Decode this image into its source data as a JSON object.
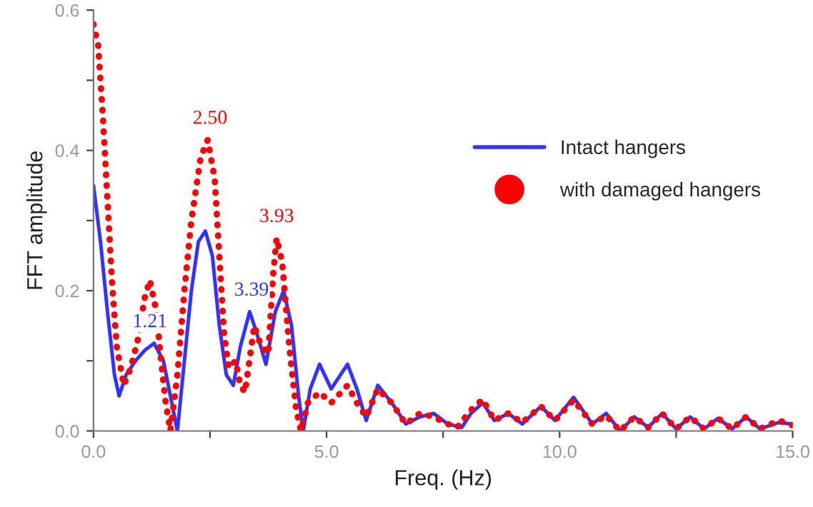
{
  "chart_data": {
    "type": "line",
    "xlabel": "Freq. (Hz)",
    "ylabel": "FFT amplitude",
    "xlim": [
      0,
      15
    ],
    "ylim": [
      0,
      0.6
    ],
    "xticks": [
      {
        "value": 0,
        "label": "0.0"
      },
      {
        "value": 2.5,
        "label": null
      },
      {
        "value": 5,
        "label": "5.0"
      },
      {
        "value": 7.5,
        "label": null
      },
      {
        "value": 10,
        "label": "10.0"
      },
      {
        "value": 12.5,
        "label": null
      },
      {
        "value": 15,
        "label": "15.0"
      }
    ],
    "yticks": [
      {
        "value": 0,
        "label": "0.0"
      },
      {
        "value": 0.1,
        "label": null
      },
      {
        "value": 0.2,
        "label": "0.2"
      },
      {
        "value": 0.3,
        "label": null
      },
      {
        "value": 0.4,
        "label": "0.4"
      },
      {
        "value": 0.5,
        "label": null
      },
      {
        "value": 0.6,
        "label": "0.6"
      }
    ],
    "grid": false,
    "legend": "right",
    "series": [
      {
        "name": "Intact hangers",
        "color": "#3333ff",
        "line_style": "solid",
        "marker": "none",
        "x": [
          0,
          0.15,
          0.3,
          0.45,
          0.55,
          0.7,
          0.9,
          1.1,
          1.3,
          1.5,
          1.65,
          1.8,
          1.95,
          2.1,
          2.25,
          2.4,
          2.55,
          2.7,
          2.85,
          3.0,
          3.15,
          3.35,
          3.5,
          3.7,
          3.9,
          4.08,
          4.25,
          4.4,
          4.5,
          4.65,
          4.85,
          5.1,
          5.45,
          5.65,
          5.85,
          6.1,
          6.4,
          6.7,
          7.0,
          7.3,
          7.6,
          7.9,
          8.1,
          8.35,
          8.6,
          8.9,
          9.2,
          9.6,
          9.9,
          10.3,
          10.7,
          11.0,
          11.3,
          11.6,
          11.9,
          12.2,
          12.5,
          12.8,
          13.1,
          13.4,
          13.7,
          14.0,
          14.3,
          14.7,
          15
        ],
        "values": [
          0.35,
          0.27,
          0.17,
          0.08,
          0.05,
          0.08,
          0.1,
          0.115,
          0.125,
          0.1,
          0.05,
          0.0,
          0.1,
          0.2,
          0.27,
          0.285,
          0.25,
          0.15,
          0.08,
          0.065,
          0.12,
          0.17,
          0.14,
          0.095,
          0.17,
          0.2,
          0.15,
          0.05,
          0.0,
          0.06,
          0.095,
          0.06,
          0.095,
          0.06,
          0.015,
          0.065,
          0.04,
          0.01,
          0.02,
          0.025,
          0.01,
          0.005,
          0.025,
          0.04,
          0.015,
          0.025,
          0.01,
          0.035,
          0.015,
          0.048,
          0.01,
          0.025,
          0.0,
          0.02,
          0.005,
          0.025,
          0.003,
          0.02,
          0.003,
          0.018,
          0.003,
          0.02,
          0.003,
          0.012,
          0.01
        ]
      },
      {
        "name": "with damaged hangers",
        "color": "#ff0000",
        "line_style": "dotted",
        "marker": "none",
        "x": [
          0,
          0.1,
          0.2,
          0.3,
          0.4,
          0.5,
          0.65,
          0.8,
          0.95,
          1.1,
          1.21,
          1.35,
          1.45,
          1.55,
          1.65,
          1.8,
          1.95,
          2.1,
          2.3,
          2.45,
          2.6,
          2.7,
          2.8,
          2.9,
          3.05,
          3.15,
          3.25,
          3.45,
          3.6,
          3.75,
          3.85,
          3.93,
          4.05,
          4.2,
          4.35,
          4.45,
          4.6,
          4.85,
          5.1,
          5.45,
          5.65,
          5.85,
          6.1,
          6.4,
          6.7,
          7.0,
          7.3,
          7.6,
          7.8,
          8.1,
          8.35,
          8.6,
          8.9,
          9.2,
          9.6,
          9.9,
          10.3,
          10.7,
          11.0,
          11.3,
          11.6,
          11.9,
          12.2,
          12.5,
          12.8,
          13.1,
          13.4,
          13.7,
          14.0,
          14.3,
          14.7,
          15
        ],
        "values": [
          0.58,
          0.55,
          0.45,
          0.33,
          0.21,
          0.12,
          0.065,
          0.09,
          0.13,
          0.19,
          0.215,
          0.17,
          0.1,
          0.04,
          0.0,
          0.08,
          0.2,
          0.3,
          0.39,
          0.415,
          0.36,
          0.25,
          0.14,
          0.09,
          0.1,
          0.065,
          0.055,
          0.15,
          0.12,
          0.11,
          0.22,
          0.275,
          0.24,
          0.12,
          0.03,
          0.0,
          0.04,
          0.055,
          0.04,
          0.065,
          0.04,
          0.02,
          0.06,
          0.04,
          0.01,
          0.025,
          0.02,
          0.01,
          0.005,
          0.03,
          0.045,
          0.015,
          0.025,
          0.012,
          0.035,
          0.015,
          0.044,
          0.01,
          0.022,
          0.0,
          0.02,
          0.005,
          0.025,
          0.003,
          0.02,
          0.003,
          0.018,
          0.003,
          0.02,
          0.003,
          0.015,
          0.008
        ]
      }
    ],
    "annotations": [
      {
        "text": "1.21",
        "x": 1.21,
        "y": 0.125
      },
      {
        "text": "2.50",
        "x": 2.5,
        "y": 0.415
      },
      {
        "text": "3.39",
        "x": 3.39,
        "y": 0.17
      },
      {
        "text": "3.93",
        "x": 3.93,
        "y": 0.275
      }
    ]
  }
}
